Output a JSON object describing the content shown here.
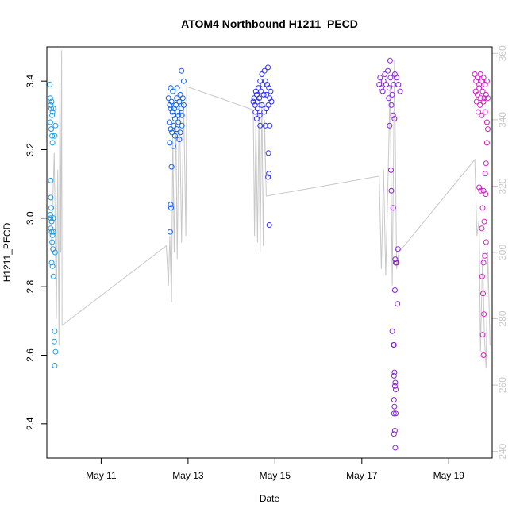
{
  "chart_data": {
    "type": "scatter",
    "title": "ATOM4 Northbound H1211_PECD",
    "xlabel": "Date",
    "ylabel": "H1211_PECD",
    "x_ticks": [
      "May 11",
      "May 13",
      "May 15",
      "May 17",
      "May 19"
    ],
    "x_tick_values": [
      11,
      13,
      15,
      17,
      19
    ],
    "xlim": [
      9.75,
      20.0
    ],
    "y_ticks": [
      "2.4",
      "2.6",
      "2.8",
      "3.0",
      "3.2",
      "3.4"
    ],
    "y_tick_values": [
      2.4,
      2.6,
      2.8,
      3.0,
      3.2,
      3.4
    ],
    "ylim": [
      2.3,
      3.5
    ],
    "secondary_axis": {
      "ticks": [
        "240",
        "260",
        "280",
        "300",
        "320",
        "340",
        "360"
      ],
      "tick_values": [
        240,
        260,
        280,
        300,
        320,
        340,
        360
      ],
      "ylim": [
        238,
        362
      ],
      "color": "#c8c8c8",
      "line": [
        [
          9.85,
          300
        ],
        [
          9.92,
          330
        ],
        [
          9.97,
          280
        ],
        [
          10.0,
          325
        ],
        [
          10.03,
          272
        ],
        [
          10.05,
          350
        ],
        [
          10.07,
          300
        ],
        [
          10.09,
          361
        ],
        [
          10.1,
          278
        ],
        [
          12.5,
          302
        ],
        [
          12.55,
          290
        ],
        [
          12.58,
          305
        ],
        [
          12.62,
          285
        ],
        [
          12.65,
          335
        ],
        [
          12.68,
          300
        ],
        [
          12.72,
          340
        ],
        [
          12.75,
          298
        ],
        [
          12.8,
          348
        ],
        [
          12.85,
          303
        ],
        [
          12.9,
          345
        ],
        [
          12.95,
          305
        ],
        [
          12.97,
          350
        ],
        [
          14.5,
          343
        ],
        [
          14.53,
          305
        ],
        [
          14.56,
          340
        ],
        [
          14.6,
          303
        ],
        [
          14.63,
          342
        ],
        [
          14.66,
          300
        ],
        [
          14.7,
          345
        ],
        [
          14.73,
          302
        ],
        [
          14.76,
          340
        ],
        [
          14.8,
          317
        ],
        [
          17.4,
          323
        ],
        [
          17.45,
          295
        ],
        [
          17.5,
          325
        ],
        [
          17.55,
          293
        ],
        [
          17.6,
          320
        ],
        [
          17.65,
          350
        ],
        [
          17.7,
          290
        ],
        [
          17.75,
          358
        ],
        [
          17.8,
          295
        ],
        [
          17.85,
          300
        ],
        [
          19.6,
          328
        ],
        [
          19.65,
          305
        ],
        [
          19.7,
          310
        ],
        [
          19.73,
          270
        ],
        [
          19.78,
          300
        ],
        [
          19.82,
          275
        ],
        [
          19.86,
          265
        ],
        [
          19.9,
          300
        ],
        [
          19.95,
          272
        ]
      ]
    },
    "series": [
      {
        "color": "#1e9be6",
        "points": [
          [
            9.82,
            3.39
          ],
          [
            9.83,
            3.35
          ],
          [
            9.84,
            3.33
          ],
          [
            9.85,
            3.32
          ],
          [
            9.86,
            3.34
          ],
          [
            9.87,
            3.3
          ],
          [
            9.88,
            3.31
          ],
          [
            9.9,
            3.32
          ],
          [
            9.83,
            3.28
          ],
          [
            9.85,
            3.26
          ],
          [
            9.87,
            3.24
          ],
          [
            9.88,
            3.22
          ],
          [
            9.95,
            3.27
          ],
          [
            9.93,
            3.24
          ],
          [
            9.84,
            3.11
          ],
          [
            9.84,
            3.06
          ],
          [
            9.85,
            3.03
          ],
          [
            9.83,
            3.01
          ],
          [
            9.84,
            3.0
          ],
          [
            9.86,
            2.99
          ],
          [
            9.9,
            3.0
          ],
          [
            9.84,
            2.97
          ],
          [
            9.86,
            2.96
          ],
          [
            9.88,
            2.95
          ],
          [
            9.9,
            2.96
          ],
          [
            9.87,
            2.93
          ],
          [
            9.89,
            2.91
          ],
          [
            9.94,
            2.9
          ],
          [
            9.86,
            2.87
          ],
          [
            9.88,
            2.86
          ],
          [
            9.9,
            2.83
          ],
          [
            9.93,
            2.67
          ],
          [
            9.92,
            2.64
          ],
          [
            9.95,
            2.61
          ],
          [
            9.93,
            2.57
          ]
        ]
      },
      {
        "color": "#1060ee",
        "points": [
          [
            12.55,
            3.35
          ],
          [
            12.58,
            3.33
          ],
          [
            12.6,
            3.32
          ],
          [
            12.62,
            3.34
          ],
          [
            12.64,
            3.31
          ],
          [
            12.66,
            3.3
          ],
          [
            12.68,
            3.32
          ],
          [
            12.7,
            3.29
          ],
          [
            12.72,
            3.33
          ],
          [
            12.74,
            3.35
          ],
          [
            12.76,
            3.31
          ],
          [
            12.78,
            3.3
          ],
          [
            12.8,
            3.34
          ],
          [
            12.82,
            3.36
          ],
          [
            12.84,
            3.32
          ],
          [
            12.86,
            3.3
          ],
          [
            12.88,
            3.35
          ],
          [
            12.9,
            3.33
          ],
          [
            12.57,
            3.28
          ],
          [
            12.6,
            3.26
          ],
          [
            12.63,
            3.25
          ],
          [
            12.67,
            3.27
          ],
          [
            12.7,
            3.24
          ],
          [
            12.74,
            3.26
          ],
          [
            12.78,
            3.28
          ],
          [
            12.82,
            3.25
          ],
          [
            12.86,
            3.27
          ],
          [
            12.9,
            3.4
          ],
          [
            12.85,
            3.43
          ],
          [
            12.75,
            3.38
          ],
          [
            12.65,
            3.37
          ],
          [
            12.6,
            3.38
          ],
          [
            12.58,
            3.22
          ],
          [
            12.66,
            3.21
          ],
          [
            12.8,
            3.23
          ],
          [
            12.62,
            3.15
          ],
          [
            12.6,
            3.04
          ],
          [
            12.61,
            3.03
          ],
          [
            12.59,
            2.96
          ]
        ]
      },
      {
        "color": "#3030ee",
        "points": [
          [
            14.5,
            3.34
          ],
          [
            14.52,
            3.35
          ],
          [
            14.54,
            3.33
          ],
          [
            14.56,
            3.37
          ],
          [
            14.58,
            3.36
          ],
          [
            14.6,
            3.34
          ],
          [
            14.62,
            3.38
          ],
          [
            14.64,
            3.35
          ],
          [
            14.66,
            3.4
          ],
          [
            14.68,
            3.37
          ],
          [
            14.7,
            3.42
          ],
          [
            14.72,
            3.39
          ],
          [
            14.74,
            3.36
          ],
          [
            14.76,
            3.43
          ],
          [
            14.78,
            3.4
          ],
          [
            14.8,
            3.36
          ],
          [
            14.82,
            3.39
          ],
          [
            14.84,
            3.44
          ],
          [
            14.86,
            3.38
          ],
          [
            14.88,
            3.35
          ],
          [
            14.9,
            3.37
          ],
          [
            14.92,
            3.34
          ],
          [
            14.55,
            3.31
          ],
          [
            14.6,
            3.32
          ],
          [
            14.65,
            3.3
          ],
          [
            14.7,
            3.33
          ],
          [
            14.75,
            3.31
          ],
          [
            14.8,
            3.32
          ],
          [
            14.85,
            3.33
          ],
          [
            14.58,
            3.29
          ],
          [
            14.66,
            3.27
          ],
          [
            14.78,
            3.27
          ],
          [
            14.88,
            3.27
          ],
          [
            14.85,
            3.19
          ],
          [
            14.86,
            3.13
          ],
          [
            14.84,
            3.12
          ],
          [
            14.87,
            2.98
          ]
        ]
      },
      {
        "color": "#8a22d8",
        "points": [
          [
            17.4,
            3.39
          ],
          [
            17.42,
            3.41
          ],
          [
            17.45,
            3.38
          ],
          [
            17.48,
            3.37
          ],
          [
            17.5,
            3.4
          ],
          [
            17.53,
            3.42
          ],
          [
            17.56,
            3.39
          ],
          [
            17.6,
            3.43
          ],
          [
            17.63,
            3.38
          ],
          [
            17.66,
            3.41
          ],
          [
            17.7,
            3.36
          ],
          [
            17.73,
            3.39
          ],
          [
            17.76,
            3.42
          ],
          [
            17.8,
            3.41
          ],
          [
            17.84,
            3.39
          ],
          [
            17.88,
            3.37
          ],
          [
            17.65,
            3.46
          ],
          [
            17.62,
            3.35
          ],
          [
            17.68,
            3.33
          ],
          [
            17.72,
            3.3
          ],
          [
            17.75,
            3.29
          ],
          [
            17.64,
            3.27
          ],
          [
            17.67,
            3.14
          ],
          [
            17.68,
            3.08
          ],
          [
            17.72,
            3.03
          ],
          [
            17.83,
            2.91
          ],
          [
            17.77,
            2.88
          ],
          [
            17.78,
            2.87
          ],
          [
            17.8,
            2.87
          ],
          [
            17.76,
            2.79
          ],
          [
            17.82,
            2.75
          ],
          [
            17.7,
            2.67
          ],
          [
            17.74,
            2.63
          ],
          [
            17.73,
            2.63
          ],
          [
            17.75,
            2.55
          ],
          [
            17.74,
            2.54
          ],
          [
            17.77,
            2.52
          ],
          [
            17.76,
            2.51
          ],
          [
            17.78,
            2.5
          ],
          [
            17.74,
            2.47
          ],
          [
            17.75,
            2.45
          ],
          [
            17.78,
            2.43
          ],
          [
            17.74,
            2.43
          ],
          [
            17.76,
            2.38
          ],
          [
            17.74,
            2.37
          ],
          [
            17.77,
            2.33
          ]
        ]
      },
      {
        "color": "#d420c8",
        "points": [
          [
            19.6,
            3.42
          ],
          [
            19.63,
            3.4
          ],
          [
            19.66,
            3.41
          ],
          [
            19.7,
            3.39
          ],
          [
            19.73,
            3.42
          ],
          [
            19.76,
            3.4
          ],
          [
            19.8,
            3.41
          ],
          [
            19.84,
            3.39
          ],
          [
            19.88,
            3.4
          ],
          [
            19.62,
            3.37
          ],
          [
            19.66,
            3.36
          ],
          [
            19.7,
            3.38
          ],
          [
            19.74,
            3.35
          ],
          [
            19.78,
            3.37
          ],
          [
            19.82,
            3.35
          ],
          [
            19.86,
            3.36
          ],
          [
            19.9,
            3.35
          ],
          [
            19.64,
            3.34
          ],
          [
            19.72,
            3.33
          ],
          [
            19.8,
            3.34
          ],
          [
            19.68,
            3.31
          ],
          [
            19.76,
            3.3
          ],
          [
            19.84,
            3.31
          ],
          [
            19.88,
            3.28
          ],
          [
            19.9,
            3.26
          ],
          [
            19.88,
            3.22
          ],
          [
            19.86,
            3.16
          ],
          [
            19.84,
            3.13
          ],
          [
            19.7,
            3.09
          ],
          [
            19.74,
            3.08
          ],
          [
            19.8,
            3.08
          ],
          [
            19.85,
            3.07
          ],
          [
            19.78,
            3.03
          ],
          [
            19.82,
            2.99
          ],
          [
            19.76,
            2.97
          ],
          [
            19.86,
            2.93
          ],
          [
            19.83,
            2.89
          ],
          [
            19.8,
            2.87
          ],
          [
            19.77,
            2.83
          ],
          [
            19.79,
            2.78
          ],
          [
            19.81,
            2.72
          ],
          [
            19.78,
            2.66
          ],
          [
            19.8,
            2.6
          ]
        ]
      }
    ]
  }
}
